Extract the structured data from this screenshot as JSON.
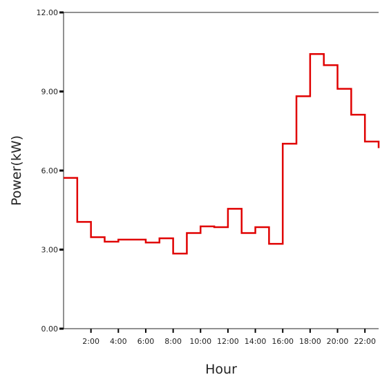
{
  "chart_data": {
    "type": "line",
    "step": true,
    "xlabel": "Hour",
    "ylabel": "Power(kW)",
    "ylim": [
      0,
      12
    ],
    "xlim": [
      0,
      23
    ],
    "y_ticks": [
      "0.00",
      "3.00",
      "6.00",
      "9.00",
      "12.00"
    ],
    "y_tick_values": [
      0,
      3,
      6,
      9,
      12
    ],
    "x_ticks": [
      "2:00",
      "4:00",
      "6:00",
      "8:00",
      "10:00",
      "12:00",
      "14:00",
      "16:00",
      "18:00",
      "20:00",
      "22:00"
    ],
    "x_tick_values": [
      2,
      4,
      6,
      8,
      10,
      12,
      14,
      16,
      18,
      20,
      22
    ],
    "grid": false,
    "line_color": "#e00000",
    "series": [
      {
        "x": [
          0,
          1,
          2,
          3,
          4,
          5,
          6,
          7,
          8,
          9,
          10,
          11,
          12,
          13,
          14,
          15,
          16,
          17,
          18,
          19,
          20,
          21,
          22,
          23
        ],
        "values": [
          5.72,
          4.05,
          3.47,
          3.3,
          3.38,
          3.38,
          3.27,
          3.43,
          2.85,
          3.63,
          3.88,
          3.85,
          4.55,
          3.63,
          3.85,
          3.22,
          7.02,
          8.82,
          10.42,
          10.0,
          9.1,
          8.12,
          7.1,
          6.85
        ]
      }
    ]
  }
}
